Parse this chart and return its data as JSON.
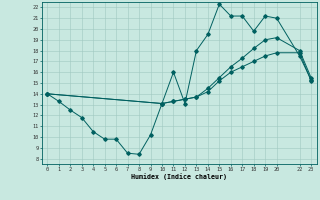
{
  "xlabel": "Humidex (Indice chaleur)",
  "bg_color": "#c8e8e0",
  "grid_color": "#a0c8c0",
  "line_color": "#006060",
  "xlim": [
    -0.5,
    23.5
  ],
  "ylim": [
    7.5,
    22.5
  ],
  "xticks": [
    0,
    1,
    2,
    3,
    4,
    5,
    6,
    7,
    8,
    9,
    10,
    11,
    12,
    13,
    14,
    15,
    16,
    17,
    18,
    19,
    20,
    22,
    23
  ],
  "yticks": [
    8,
    9,
    10,
    11,
    12,
    13,
    14,
    15,
    16,
    17,
    18,
    19,
    20,
    21,
    22
  ],
  "line1_x": [
    0,
    1,
    2,
    3,
    4,
    5,
    6,
    7,
    8,
    9,
    10,
    11,
    12,
    13,
    14,
    15,
    16,
    17,
    18,
    19,
    20,
    22,
    23
  ],
  "line1_y": [
    14,
    13.3,
    12.5,
    11.8,
    10.5,
    9.8,
    9.8,
    8.5,
    8.4,
    10.2,
    13.1,
    16.0,
    13.1,
    18.0,
    19.5,
    22.3,
    21.2,
    21.2,
    19.8,
    21.2,
    21.0,
    17.5,
    15.3
  ],
  "line2_x": [
    0,
    10,
    11,
    12,
    13,
    14,
    15,
    16,
    17,
    18,
    19,
    20,
    22,
    23
  ],
  "line2_y": [
    14.0,
    13.1,
    13.3,
    13.5,
    13.7,
    14.2,
    15.2,
    16.0,
    16.5,
    17.0,
    17.5,
    17.8,
    17.8,
    15.2
  ],
  "line3_x": [
    0,
    10,
    11,
    12,
    13,
    14,
    15,
    16,
    17,
    18,
    19,
    20,
    22,
    23
  ],
  "line3_y": [
    14.0,
    13.1,
    13.3,
    13.5,
    13.7,
    14.5,
    15.5,
    16.5,
    17.3,
    18.2,
    19.0,
    19.2,
    18.0,
    15.5
  ]
}
